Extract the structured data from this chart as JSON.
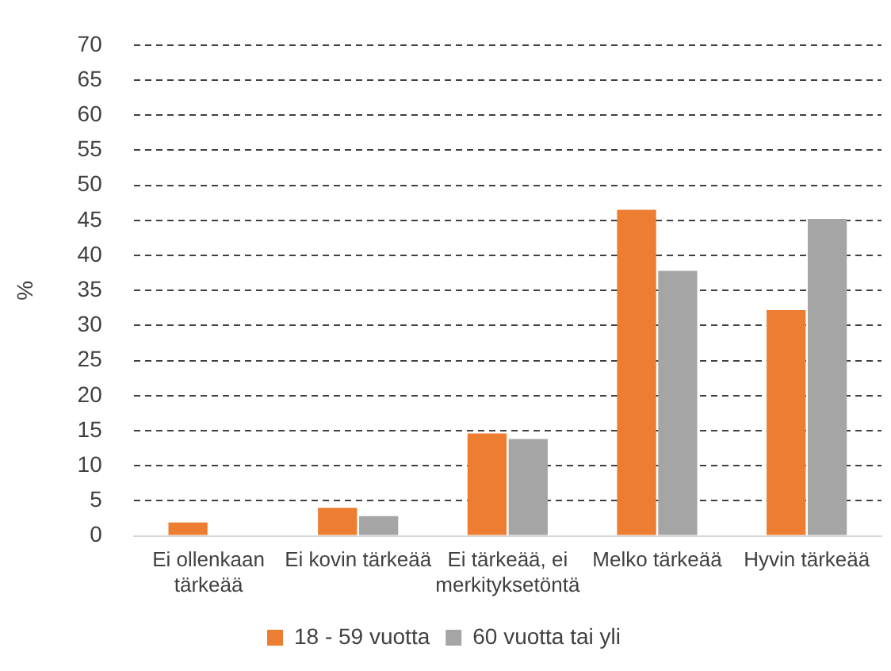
{
  "chart_data": {
    "type": "bar",
    "ylabel": "%",
    "categories": [
      "Ei ollenkaan tärkeää",
      "Ei kovin tärkeää",
      "Ei tärkeää, ei merkityksetöntä",
      "Melko tärkeää",
      "Hyvin tärkeää"
    ],
    "series": [
      {
        "name": "18 - 59 vuotta",
        "color": "#ed7d31",
        "values": [
          1.9,
          4.0,
          14.6,
          46.5,
          32.2
        ]
      },
      {
        "name": "60 vuotta tai yli",
        "color": "#a5a5a5",
        "values": [
          0,
          2.8,
          13.8,
          37.8,
          45.2
        ]
      }
    ],
    "ylim": [
      0,
      70
    ],
    "yticks": [
      0,
      5,
      10,
      15,
      20,
      25,
      30,
      35,
      40,
      45,
      50,
      55,
      60,
      65,
      70
    ],
    "grid": "y",
    "legend": "bottom"
  }
}
